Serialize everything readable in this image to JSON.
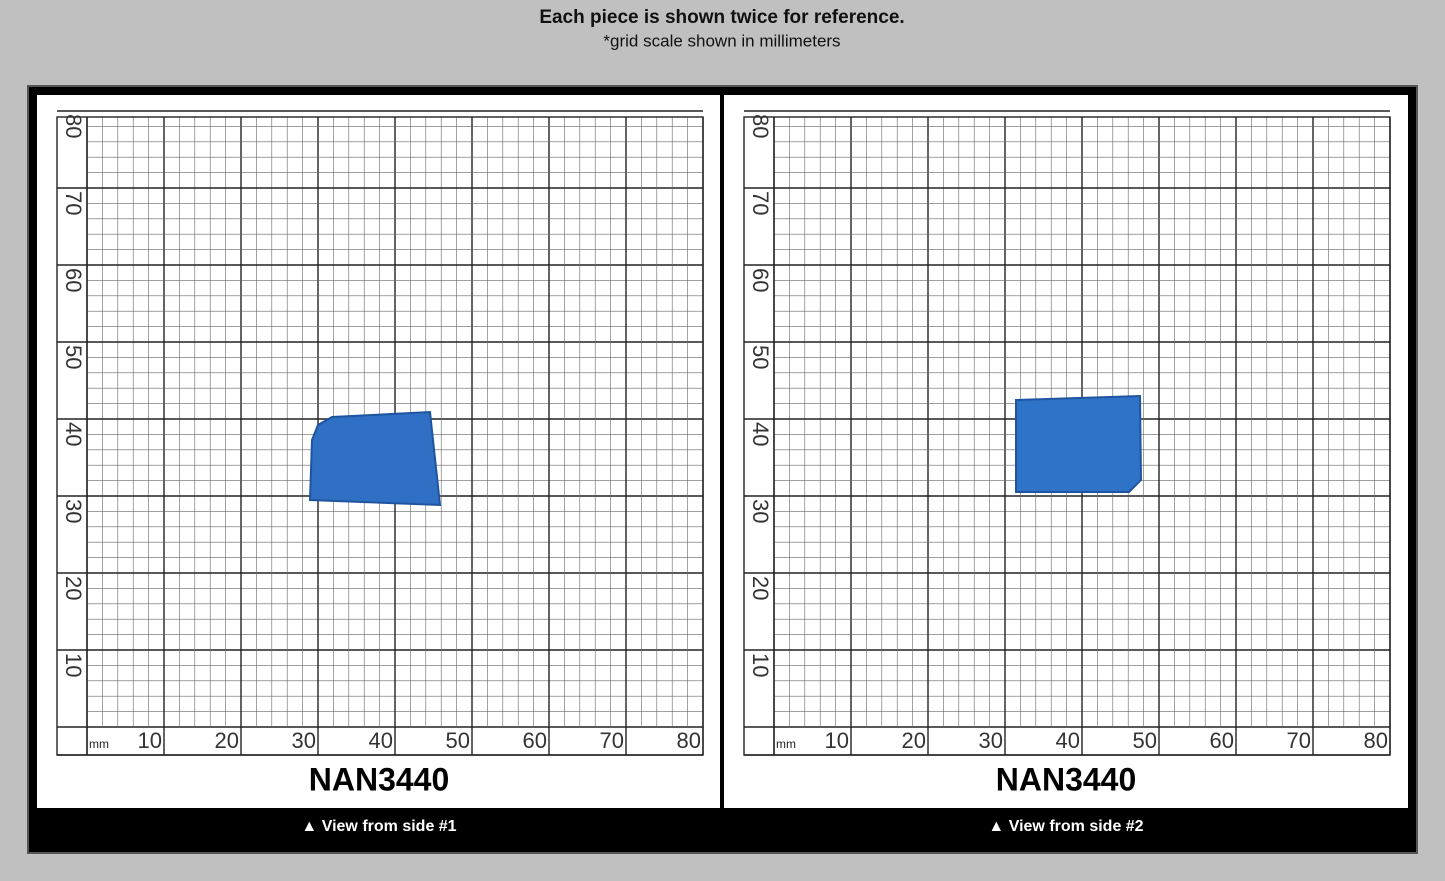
{
  "header": {
    "title": "Each piece is shown twice for reference.",
    "subtitle": "*grid scale shown in millimeters"
  },
  "scale": {
    "unit": "mm",
    "x_labels": [
      10,
      20,
      30,
      40,
      50,
      60,
      70,
      80
    ],
    "y_labels": [
      10,
      20,
      30,
      40,
      50,
      60,
      70,
      80
    ]
  },
  "panels": [
    {
      "label": "NAN3440",
      "caption": "▲ View from side #1"
    },
    {
      "label": "NAN3440",
      "caption": "▲ View from side #2"
    }
  ]
}
